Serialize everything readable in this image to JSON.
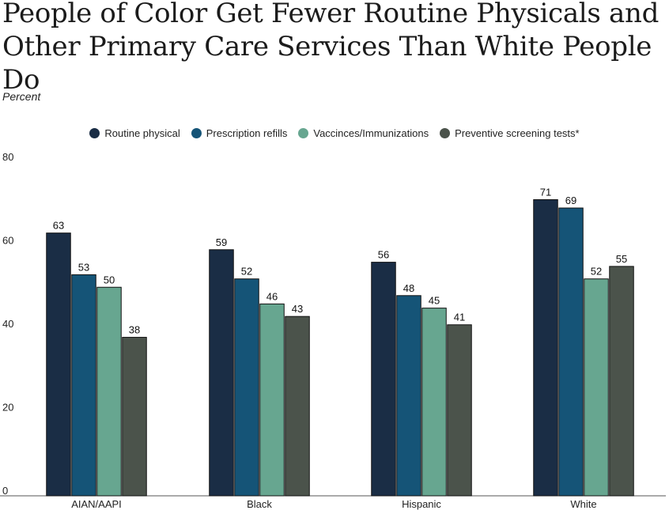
{
  "title": "People of Color Get Fewer Routine Physicals and Other Primary Care Services Than White People Do",
  "subtitle": "Percent",
  "chart_data": {
    "type": "bar",
    "title": "People of Color Get Fewer Routine Physicals and Other Primary Care Services Than White People Do",
    "ylabel": "Percent",
    "xlabel": "",
    "ylim": [
      0,
      80
    ],
    "yticks": [
      0,
      20,
      40,
      60,
      80
    ],
    "grid": false,
    "legend": "top-center",
    "categories": [
      "AIAN/AAPI",
      "Black",
      "Hispanic",
      "White"
    ],
    "series": [
      {
        "name": "Routine physical",
        "color": "#1a2d45",
        "values": [
          63,
          59,
          56,
          71
        ]
      },
      {
        "name": "Prescription refills",
        "color": "#155477",
        "values": [
          53,
          52,
          48,
          69
        ]
      },
      {
        "name": "Vaccinces/Immunizations",
        "color": "#67a690",
        "values": [
          50,
          46,
          45,
          52
        ]
      },
      {
        "name": "Preventive screening tests*",
        "color": "#4b534b",
        "values": [
          38,
          43,
          41,
          55
        ]
      }
    ]
  }
}
